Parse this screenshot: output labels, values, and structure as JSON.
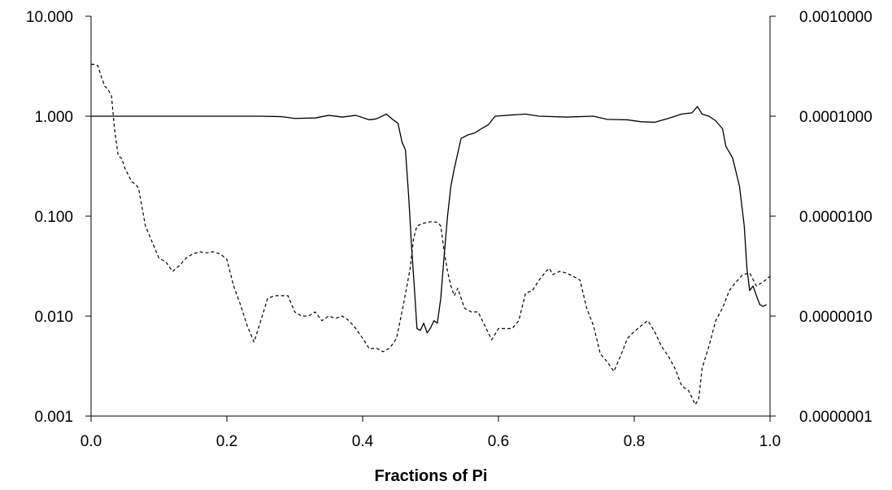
{
  "chart_data": {
    "type": "line",
    "title": "",
    "xlabel": "Fractions of Pi",
    "xlim": [
      0.0,
      1.0
    ],
    "x_ticks": [
      "0.0",
      "0.2",
      "0.4",
      "0.6",
      "0.8",
      "1.0"
    ],
    "y_left": {
      "scale": "log",
      "lim": [
        0.001,
        10
      ],
      "ticks": [
        0.001,
        0.01,
        0.1,
        1,
        10
      ],
      "tick_labels": [
        "0.001",
        "0.010",
        "0.100",
        "1.000",
        "10.000"
      ]
    },
    "y_right": {
      "scale": "log",
      "lim": [
        1e-07,
        0.001
      ],
      "ticks": [
        1e-07,
        1e-06,
        1e-05,
        0.0001,
        0.001
      ],
      "tick_labels": [
        "0.0000001",
        "0.0000010",
        "0.0000100",
        "0.0001000",
        "0.0010000"
      ]
    },
    "grid": false,
    "legend": "none",
    "series": [
      {
        "axis": "left",
        "style": "solid",
        "points": [
          [
            0.0,
            1.0
          ],
          [
            0.05,
            1.0
          ],
          [
            0.1,
            1.0
          ],
          [
            0.15,
            1.0
          ],
          [
            0.2,
            1.0
          ],
          [
            0.25,
            1.0
          ],
          [
            0.28,
            0.99
          ],
          [
            0.3,
            0.95
          ],
          [
            0.33,
            0.96
          ],
          [
            0.35,
            1.02
          ],
          [
            0.37,
            0.98
          ],
          [
            0.39,
            1.02
          ],
          [
            0.41,
            0.92
          ],
          [
            0.42,
            0.94
          ],
          [
            0.435,
            1.05
          ],
          [
            0.445,
            0.92
          ],
          [
            0.452,
            0.85
          ],
          [
            0.458,
            0.55
          ],
          [
            0.463,
            0.46
          ],
          [
            0.468,
            0.15
          ],
          [
            0.472,
            0.05
          ],
          [
            0.476,
            0.02
          ],
          [
            0.48,
            0.0075
          ],
          [
            0.485,
            0.0072
          ],
          [
            0.49,
            0.0085
          ],
          [
            0.495,
            0.0068
          ],
          [
            0.5,
            0.0076
          ],
          [
            0.505,
            0.009
          ],
          [
            0.51,
            0.0085
          ],
          [
            0.515,
            0.015
          ],
          [
            0.52,
            0.04
          ],
          [
            0.525,
            0.1
          ],
          [
            0.53,
            0.2
          ],
          [
            0.535,
            0.3
          ],
          [
            0.545,
            0.6
          ],
          [
            0.555,
            0.65
          ],
          [
            0.565,
            0.68
          ],
          [
            0.575,
            0.75
          ],
          [
            0.585,
            0.82
          ],
          [
            0.595,
            1.0
          ],
          [
            0.62,
            1.03
          ],
          [
            0.64,
            1.05
          ],
          [
            0.66,
            1.0
          ],
          [
            0.7,
            0.98
          ],
          [
            0.74,
            1.0
          ],
          [
            0.76,
            0.93
          ],
          [
            0.79,
            0.92
          ],
          [
            0.81,
            0.88
          ],
          [
            0.83,
            0.87
          ],
          [
            0.85,
            0.95
          ],
          [
            0.87,
            1.05
          ],
          [
            0.885,
            1.08
          ],
          [
            0.893,
            1.25
          ],
          [
            0.9,
            1.05
          ],
          [
            0.91,
            1.0
          ],
          [
            0.92,
            0.9
          ],
          [
            0.93,
            0.75
          ],
          [
            0.935,
            0.5
          ],
          [
            0.945,
            0.38
          ],
          [
            0.955,
            0.2
          ],
          [
            0.962,
            0.08
          ],
          [
            0.966,
            0.03
          ],
          [
            0.97,
            0.018
          ],
          [
            0.975,
            0.02
          ],
          [
            0.98,
            0.016
          ],
          [
            0.985,
            0.013
          ],
          [
            0.99,
            0.0125
          ],
          [
            0.995,
            0.013
          ]
        ]
      },
      {
        "axis": "right",
        "style": "dashed",
        "points": [
          [
            0.0,
            0.00033
          ],
          [
            0.005,
            0.00033
          ],
          [
            0.01,
            0.00032
          ],
          [
            0.015,
            0.00025
          ],
          [
            0.02,
            0.0002
          ],
          [
            0.025,
            0.000185
          ],
          [
            0.03,
            0.00016
          ],
          [
            0.035,
            7e-05
          ],
          [
            0.04,
            4e-05
          ],
          [
            0.045,
            3.8e-05
          ],
          [
            0.05,
            3e-05
          ],
          [
            0.06,
            2.2e-05
          ],
          [
            0.065,
            2.1e-05
          ],
          [
            0.07,
            1.9e-05
          ],
          [
            0.08,
            8e-06
          ],
          [
            0.09,
            5.5e-06
          ],
          [
            0.1,
            3.8e-06
          ],
          [
            0.11,
            3.5e-06
          ],
          [
            0.12,
            2.8e-06
          ],
          [
            0.13,
            3.2e-06
          ],
          [
            0.14,
            3.8e-06
          ],
          [
            0.15,
            4.2e-06
          ],
          [
            0.16,
            4.4e-06
          ],
          [
            0.17,
            4.3e-06
          ],
          [
            0.18,
            4.4e-06
          ],
          [
            0.19,
            4.2e-06
          ],
          [
            0.2,
            3.7e-06
          ],
          [
            0.21,
            2e-06
          ],
          [
            0.22,
            1.3e-06
          ],
          [
            0.23,
            8e-07
          ],
          [
            0.24,
            5.5e-07
          ],
          [
            0.25,
            9e-07
          ],
          [
            0.26,
            1.5e-06
          ],
          [
            0.27,
            1.6e-06
          ],
          [
            0.28,
            1.6e-06
          ],
          [
            0.29,
            1.6e-06
          ],
          [
            0.3,
            1.1e-06
          ],
          [
            0.31,
            1e-06
          ],
          [
            0.32,
            1e-06
          ],
          [
            0.33,
            1.1e-06
          ],
          [
            0.34,
            9e-07
          ],
          [
            0.35,
            1e-06
          ],
          [
            0.36,
            9.5e-07
          ],
          [
            0.37,
            1e-06
          ],
          [
            0.38,
            9e-07
          ],
          [
            0.39,
            7.5e-07
          ],
          [
            0.4,
            6e-07
          ],
          [
            0.41,
            4.7e-07
          ],
          [
            0.42,
            4.8e-07
          ],
          [
            0.43,
            4.4e-07
          ],
          [
            0.44,
            4.8e-07
          ],
          [
            0.45,
            6e-07
          ],
          [
            0.46,
            1.3e-06
          ],
          [
            0.47,
            3e-06
          ],
          [
            0.475,
            6e-06
          ],
          [
            0.48,
            8e-06
          ],
          [
            0.49,
            8.5e-06
          ],
          [
            0.5,
            8.8e-06
          ],
          [
            0.51,
            8.7e-06
          ],
          [
            0.515,
            8e-06
          ],
          [
            0.52,
            4.5e-06
          ],
          [
            0.525,
            2.8e-06
          ],
          [
            0.53,
            2e-06
          ],
          [
            0.535,
            1.6e-06
          ],
          [
            0.54,
            1.9e-06
          ],
          [
            0.55,
            1.2e-06
          ],
          [
            0.56,
            1.1e-06
          ],
          [
            0.57,
            1.1e-06
          ],
          [
            0.58,
            8e-07
          ],
          [
            0.59,
            5.8e-07
          ],
          [
            0.6,
            7.5e-07
          ],
          [
            0.62,
            7.5e-07
          ],
          [
            0.63,
            9e-07
          ],
          [
            0.64,
            1.7e-06
          ],
          [
            0.65,
            1.8e-06
          ],
          [
            0.66,
            2.3e-06
          ],
          [
            0.67,
            2.8e-06
          ],
          [
            0.675,
            3e-06
          ],
          [
            0.68,
            2.6e-06
          ],
          [
            0.69,
            2.8e-06
          ],
          [
            0.7,
            2.7e-06
          ],
          [
            0.71,
            2.5e-06
          ],
          [
            0.72,
            2.3e-06
          ],
          [
            0.73,
            1.2e-06
          ],
          [
            0.74,
            8e-07
          ],
          [
            0.75,
            4.2e-07
          ],
          [
            0.76,
            3.5e-07
          ],
          [
            0.77,
            2.8e-07
          ],
          [
            0.78,
            4e-07
          ],
          [
            0.79,
            6e-07
          ],
          [
            0.8,
            7e-07
          ],
          [
            0.81,
            8e-07
          ],
          [
            0.82,
            9e-07
          ],
          [
            0.83,
            7e-07
          ],
          [
            0.84,
            5e-07
          ],
          [
            0.85,
            4e-07
          ],
          [
            0.86,
            3e-07
          ],
          [
            0.87,
            2e-07
          ],
          [
            0.88,
            1.8e-07
          ],
          [
            0.89,
            1.3e-07
          ],
          [
            0.895,
            1.5e-07
          ],
          [
            0.9,
            3e-07
          ],
          [
            0.91,
            5e-07
          ],
          [
            0.92,
            9e-07
          ],
          [
            0.93,
            1.2e-06
          ],
          [
            0.94,
            1.8e-06
          ],
          [
            0.95,
            2.2e-06
          ],
          [
            0.96,
            2.6e-06
          ],
          [
            0.97,
            2.7e-06
          ],
          [
            0.98,
            2e-06
          ],
          [
            0.99,
            2.2e-06
          ],
          [
            1.0,
            2.5e-06
          ]
        ]
      }
    ]
  }
}
